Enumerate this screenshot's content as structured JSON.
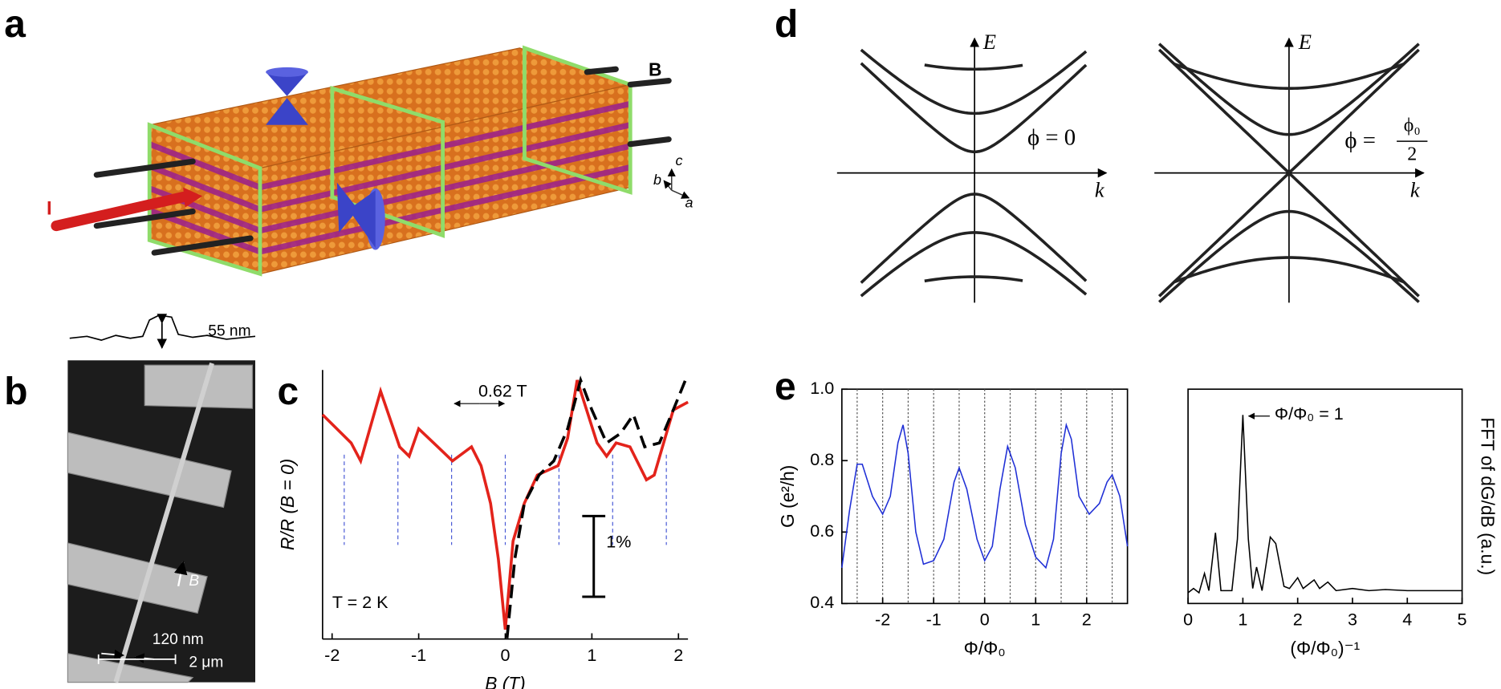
{
  "panel_labels": [
    "a",
    "b",
    "c",
    "d",
    "e"
  ],
  "panel_a": {
    "field": "B",
    "current": "I",
    "axis_c": "c",
    "axis_b": "b",
    "axis_a": "a"
  },
  "panel_b": {
    "height": "55 nm",
    "field": "B",
    "width": "120 nm",
    "scale": "2 μm"
  },
  "panel_d": {
    "energy_left": "E",
    "momentum_left": "k",
    "phase_left": "ϕ = 0",
    "energy_right": "E",
    "momentum_right": "k",
    "phase_right": "ϕ =",
    "phase_right_numerator": "ϕ₀",
    "phase_right_denominator": "2"
  },
  "chart_data": [
    {
      "type": "line",
      "xlabel": "B (T)",
      "ylabel": "R/R (B = 0)",
      "annotations": [
        "0.62 T",
        "1%",
        "T = 2 K"
      ],
      "xlim": [
        -2.11,
        2.11
      ],
      "ylim": [
        0.999,
        1.0333
      ],
      "xticks": [
        -2,
        -1,
        0,
        1,
        2
      ],
      "period_lines": [
        -1.86,
        -1.24,
        -0.62,
        0,
        0.62,
        1.24,
        1.86
      ],
      "series": [
        {
          "color": "#e3231b",
          "dashed": false,
          "x": [
            -2.11,
            -1.78,
            -1.67,
            -1.44,
            -1.22,
            -1.11,
            -1.0,
            -0.78,
            -0.61,
            -0.39,
            -0.28,
            -0.17,
            -0.08,
            0,
            0.09,
            0.22,
            0.37,
            0.61,
            0.72,
            0.83,
            1.06,
            1.17,
            1.28,
            1.44,
            1.63,
            1.72,
            1.94,
            2.11
          ],
          "values": [
            1.0276,
            1.024,
            1.0217,
            1.0306,
            1.0235,
            1.0223,
            1.0258,
            1.0235,
            1.0217,
            1.0235,
            1.0211,
            1.0163,
            1.0092,
            1.0002,
            1.0115,
            1.0163,
            1.0199,
            1.0211,
            1.0246,
            1.032,
            1.024,
            1.0223,
            1.024,
            1.0235,
            1.0193,
            1.0199,
            1.0282,
            1.0292
          ]
        },
        {
          "color": "#000000",
          "dashed": true,
          "x": [
            0.02,
            0.11,
            0.22,
            0.39,
            0.56,
            0.72,
            0.87,
            1.0,
            1.17,
            1.33,
            1.48,
            1.61,
            1.78,
            1.94,
            2.08
          ],
          "values": [
            0.9991,
            1.0092,
            1.0163,
            1.0199,
            1.0217,
            1.0258,
            1.032,
            1.0282,
            1.024,
            1.0252,
            1.0276,
            1.0235,
            1.024,
            1.0282,
            1.032
          ]
        }
      ]
    },
    {
      "type": "line",
      "xlabel": "Φ/Φ₀",
      "ylabel": "G (e²/h)",
      "xlim": [
        -2.8,
        2.8
      ],
      "ylim": [
        0.4,
        1.0
      ],
      "xticks": [
        -2,
        -1,
        0,
        1,
        2
      ],
      "yticks": [
        0.4,
        0.6,
        0.8,
        {
          "value": 1.0,
          "label": "1.0"
        }
      ],
      "period_lines": [
        -2.5,
        -2,
        -1.5,
        -1,
        -0.5,
        0,
        0.5,
        1,
        1.5,
        2,
        2.5
      ],
      "series": [
        {
          "color": "#1f2fd6",
          "dashed": false,
          "x": [
            -2.8,
            -2.65,
            -2.5,
            -2.4,
            -2.2,
            -2.0,
            -1.85,
            -1.7,
            -1.6,
            -1.5,
            -1.35,
            -1.2,
            -1.0,
            -0.8,
            -0.6,
            -0.5,
            -0.35,
            -0.15,
            0,
            0.15,
            0.3,
            0.45,
            0.6,
            0.8,
            1.0,
            1.2,
            1.35,
            1.5,
            1.6,
            1.7,
            1.85,
            2.05,
            2.25,
            2.4,
            2.5,
            2.65,
            2.8
          ],
          "values": [
            0.5,
            0.66,
            0.79,
            0.79,
            0.7,
            0.65,
            0.7,
            0.85,
            0.9,
            0.82,
            0.6,
            0.51,
            0.52,
            0.58,
            0.74,
            0.78,
            0.72,
            0.58,
            0.52,
            0.56,
            0.72,
            0.84,
            0.78,
            0.62,
            0.53,
            0.5,
            0.58,
            0.82,
            0.9,
            0.86,
            0.7,
            0.65,
            0.68,
            0.74,
            0.76,
            0.7,
            0.56
          ]
        }
      ]
    },
    {
      "type": "line",
      "xlabel": "(Φ/Φ₀)⁻¹",
      "ylabel": "FFT of dG/dB (a.u.)",
      "annotations": [
        "Φ/Φ₀ = 1"
      ],
      "xlim": [
        0,
        5
      ],
      "ylim": [
        0,
        1
      ],
      "xticks": [
        0,
        1,
        2,
        3,
        4,
        5
      ],
      "series": [
        {
          "color": "#000000",
          "dashed": false,
          "x": [
            0,
            0.1,
            0.2,
            0.3,
            0.38,
            0.5,
            0.6,
            0.8,
            0.9,
            1.0,
            1.1,
            1.18,
            1.25,
            1.35,
            1.5,
            1.6,
            1.75,
            1.85,
            2.0,
            2.1,
            2.3,
            2.4,
            2.55,
            2.7,
            3.0,
            3.3,
            3.6,
            4.0,
            5
          ],
          "values": [
            0.05,
            0.07,
            0.05,
            0.14,
            0.06,
            0.33,
            0.06,
            0.06,
            0.3,
            0.88,
            0.3,
            0.07,
            0.17,
            0.06,
            0.31,
            0.28,
            0.08,
            0.07,
            0.12,
            0.07,
            0.11,
            0.07,
            0.1,
            0.06,
            0.07,
            0.06,
            0.065,
            0.06,
            0.06
          ]
        }
      ]
    }
  ]
}
